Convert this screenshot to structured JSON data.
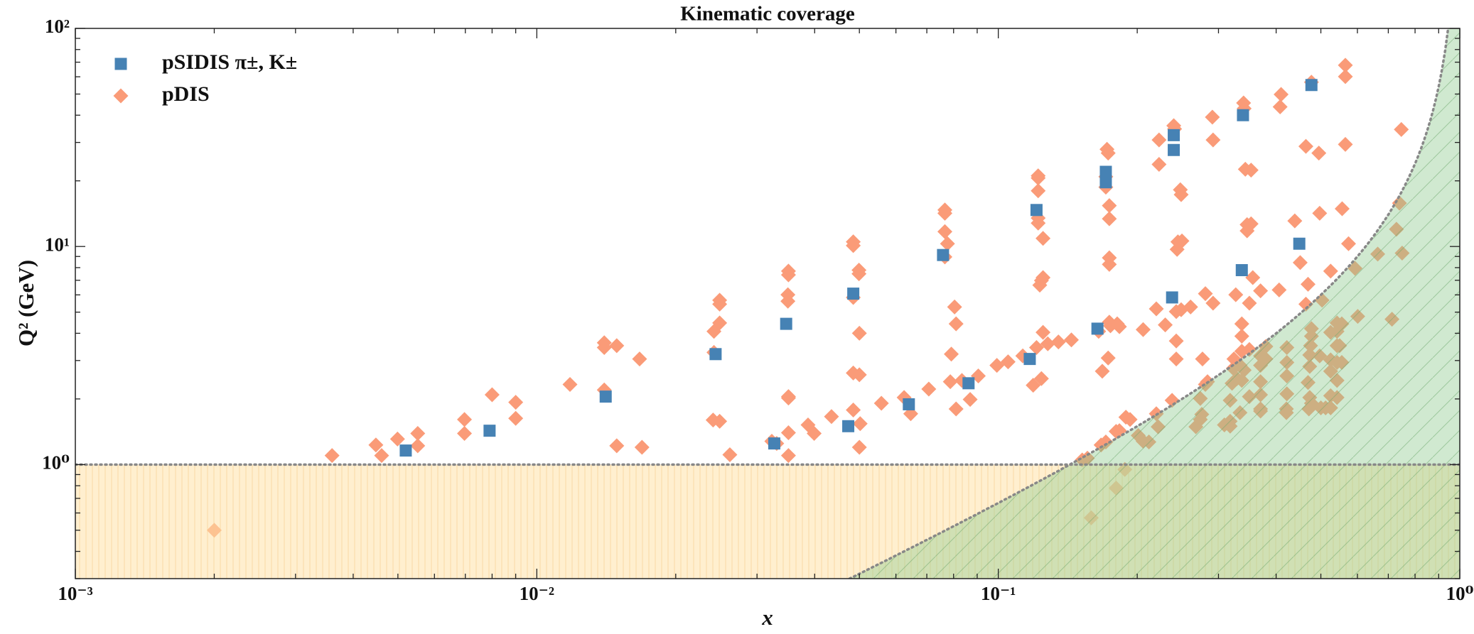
{
  "chart_data": {
    "type": "scatter",
    "title": "Kinematic coverage",
    "x_label": "x",
    "y_label": "Q² (GeV)",
    "xscale": "log",
    "yscale": "log",
    "grid": false,
    "legend": "upper left",
    "xlim": [
      0.001,
      1
    ],
    "ylim": [
      0.3,
      100
    ],
    "xticks": [
      {
        "value": 0.001,
        "label": "10⁻³"
      },
      {
        "value": 0.01,
        "label": "10⁻²"
      },
      {
        "value": 0.1,
        "label": "10⁻¹"
      },
      {
        "value": 1,
        "label": "10⁰"
      }
    ],
    "yticks": [
      {
        "value": 1,
        "label": "10⁰"
      },
      {
        "value": 10,
        "label": "10¹"
      },
      {
        "value": 100,
        "label": "10²"
      }
    ],
    "series": [
      {
        "name": "pSIDIS π±, K±",
        "color": "#4682b4",
        "marker": "square",
        "x": [
          0.0052,
          0.0079,
          0.0141,
          0.0244,
          0.0327,
          0.0347,
          0.0473,
          0.0485,
          0.064,
          0.0759,
          0.0862,
          0.117,
          0.121,
          0.164,
          0.171,
          0.171,
          0.238,
          0.24,
          0.24,
          0.337,
          0.339,
          0.449,
          0.477
        ],
        "y": [
          1.16,
          1.43,
          2.05,
          3.21,
          1.25,
          4.42,
          1.5,
          6.08,
          1.89,
          9.14,
          2.36,
          3.05,
          14.7,
          4.2,
          22.0,
          19.7,
          5.84,
          27.7,
          32.4,
          7.79,
          40.0,
          10.3,
          55.0
        ]
      },
      {
        "name": "pDIS",
        "color": "#fa9b78",
        "marker": "diamond",
        "x": [
          0.002,
          0.0036,
          0.00448,
          0.00461,
          0.00499,
          0.00552,
          0.00552,
          0.00697,
          0.00697,
          0.008,
          0.009,
          0.009,
          0.0118,
          0.014,
          0.014,
          0.014,
          0.0149,
          0.0149,
          0.0167,
          0.0169,
          0.0241,
          0.0249,
          0.0242,
          0.0242,
          0.0249,
          0.0249,
          0.0249,
          0.0262,
          0.0323,
          0.0331,
          0.0351,
          0.0351,
          0.0351,
          0.0351,
          0.035,
          0.035,
          0.0351,
          0.0351,
          0.0387,
          0.0399,
          0.0435,
          0.0485,
          0.0485,
          0.0485,
          0.0485,
          0.0485,
          0.0499,
          0.0499,
          0.05,
          0.05,
          0.05,
          0.0502,
          0.0558,
          0.0625,
          0.0646,
          0.0707,
          0.0766,
          0.0766,
          0.0766,
          0.0766,
          0.0776,
          0.0787,
          0.0804,
          0.081,
          0.0791,
          0.081,
          0.0834,
          0.0869,
          0.0905,
          0.0993,
          0.105,
          0.113,
          0.121,
          0.128,
          0.135,
          0.144,
          0.119,
          0.124,
          0.122,
          0.122,
          0.122,
          0.122,
          0.122,
          0.123,
          0.124,
          0.125,
          0.125,
          0.125,
          0.165,
          0.168,
          0.167,
          0.171,
          0.173,
          0.171,
          0.171,
          0.172,
          0.173,
          0.174,
          0.174,
          0.174,
          0.174,
          0.174,
          0.175,
          0.181,
          0.183,
          0.18,
          0.183,
          0.18,
          0.188,
          0.206,
          0.206,
          0.189,
          0.193,
          0.152,
          0.156,
          0.159,
          0.201,
          0.212,
          0.22,
          0.22,
          0.222,
          0.223,
          0.223,
          0.23,
          0.238,
          0.243,
          0.243,
          0.244,
          0.245,
          0.243,
          0.24,
          0.241,
          0.248,
          0.249,
          0.249,
          0.261,
          0.25,
          0.268,
          0.274,
          0.274,
          0.276,
          0.281,
          0.277,
          0.281,
          0.284,
          0.291,
          0.292,
          0.292,
          0.309,
          0.318,
          0.318,
          0.318,
          0.321,
          0.323,
          0.324,
          0.327,
          0.329,
          0.334,
          0.334,
          0.337,
          0.337,
          0.337,
          0.337,
          0.34,
          0.341,
          0.343,
          0.353,
          0.346,
          0.346,
          0.35,
          0.341,
          0.35,
          0.353,
          0.35,
          0.356,
          0.37,
          0.37,
          0.37,
          0.37,
          0.37,
          0.37,
          0.37,
          0.38,
          0.38,
          0.41,
          0.408,
          0.406,
          0.422,
          0.422,
          0.422,
          0.422,
          0.421,
          0.421,
          0.439,
          0.451,
          0.464,
          0.464,
          0.469,
          0.471,
          0.473,
          0.469,
          0.473,
          0.473,
          0.475,
          0.477,
          0.477,
          0.477,
          0.477,
          0.495,
          0.497,
          0.497,
          0.5,
          0.503,
          0.512,
          0.525,
          0.525,
          0.525,
          0.525,
          0.525,
          0.525,
          0.542,
          0.542,
          0.542,
          0.542,
          0.542,
          0.542,
          0.555,
          0.549,
          0.555,
          0.556,
          0.565,
          0.565,
          0.565,
          0.574,
          0.593,
          0.601,
          0.664,
          0.713,
          0.729,
          0.74,
          0.75,
          0.747
        ],
        "y": [
          0.5,
          1.1,
          1.23,
          1.1,
          1.31,
          1.39,
          1.22,
          1.61,
          1.39,
          2.09,
          1.93,
          1.63,
          2.33,
          3.62,
          3.44,
          2.2,
          3.51,
          1.22,
          3.05,
          1.2,
          1.6,
          1.58,
          4.08,
          3.27,
          5.67,
          5.44,
          4.46,
          1.11,
          1.28,
          1.25,
          1.4,
          1.1,
          2.05,
          2.02,
          5.61,
          6.01,
          7.71,
          7.41,
          1.52,
          1.39,
          1.66,
          1.78,
          5.84,
          10.1,
          10.5,
          2.63,
          7.79,
          7.5,
          4,
          2.58,
          1.2,
          1.54,
          1.91,
          2.03,
          1.71,
          2.22,
          14.7,
          14.2,
          11.7,
          8.96,
          10.3,
          2.4,
          5.28,
          4.42,
          3.21,
          1.8,
          2.43,
          1.99,
          2.55,
          2.85,
          2.96,
          3.15,
          3.44,
          3.58,
          3.65,
          3.73,
          2.31,
          2.48,
          21.1,
          18,
          20.6,
          13.5,
          12.8,
          6.65,
          6.98,
          10.9,
          7.2,
          4.04,
          4.08,
          2.68,
          1.23,
          1.27,
          3.08,
          18.7,
          20.9,
          27.9,
          26.8,
          15.4,
          13.4,
          8.87,
          8.28,
          4.5,
          4.33,
          4.42,
          4.29,
          1.42,
          1.43,
          0.78,
          0.95,
          4.16,
          1.28,
          1.65,
          1.61,
          1.05,
          1.07,
          0.57,
          1.36,
          1.27,
          5.18,
          1.71,
          1.49,
          23.8,
          30.8,
          4.37,
          1.97,
          3.05,
          3.69,
          9.7,
          10.5,
          5.03,
          35.8,
          34.6,
          18.2,
          17.3,
          5.13,
          5.28,
          10.6,
          1.49,
          1.61,
          2.01,
          1.7,
          6.08,
          3.05,
          2.33,
          2.4,
          39.2,
          30.8,
          5.5,
          1.52,
          1.5,
          1.58,
          1.97,
          2.36,
          2.76,
          3.05,
          6.01,
          2.48,
          2.85,
          1.73,
          2.43,
          3.88,
          4.42,
          3.31,
          45.5,
          42.9,
          22.6,
          22.4,
          11.8,
          12.6,
          3.37,
          2.71,
          2.05,
          12.7,
          5.5,
          7.2,
          6.26,
          3.15,
          2.85,
          2.4,
          2.09,
          1.8,
          1.76,
          3.48,
          3.05,
          49.8,
          43.7,
          6.32,
          2.94,
          3.44,
          2.55,
          2.11,
          1.73,
          1.8,
          13.1,
          8.44,
          5.44,
          28.8,
          6.71,
          1.8,
          2.03,
          2.38,
          2.82,
          3.18,
          3.51,
          3.88,
          4.2,
          56.7,
          1.91,
          26.8,
          14.2,
          3.15,
          1.82,
          5.67,
          1.82,
          1.82,
          2.68,
          3.02,
          2.07,
          4.04,
          7.71,
          2.03,
          2.43,
          2.94,
          3.51,
          4.08,
          4.46,
          2.94,
          3.51,
          4.42,
          14.9,
          29.4,
          60.1,
          67.8,
          10.3,
          7.94,
          4.78,
          9.23,
          4.64,
          12,
          15.8,
          9.33,
          34.4
        ]
      }
    ]
  }
}
